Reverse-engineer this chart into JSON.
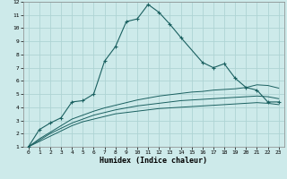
{
  "xlabel": "Humidex (Indice chaleur)",
  "background_color": "#cdeaea",
  "grid_color": "#aed4d4",
  "line_color": "#1a6060",
  "xlim": [
    -0.5,
    23.5
  ],
  "ylim": [
    1,
    12
  ],
  "xticks": [
    0,
    1,
    2,
    3,
    4,
    5,
    6,
    7,
    8,
    9,
    10,
    11,
    12,
    13,
    14,
    15,
    16,
    17,
    18,
    19,
    20,
    21,
    22,
    23
  ],
  "yticks": [
    1,
    2,
    3,
    4,
    5,
    6,
    7,
    8,
    9,
    10,
    11,
    12
  ],
  "series_main": {
    "x": [
      0,
      1,
      2,
      3,
      4,
      5,
      6,
      7,
      8,
      9,
      10,
      11,
      12,
      13,
      14,
      16,
      17,
      18,
      19,
      20,
      21,
      22,
      23
    ],
    "y": [
      1.0,
      2.3,
      2.8,
      3.2,
      4.4,
      4.5,
      5.0,
      7.5,
      8.6,
      10.5,
      10.7,
      11.8,
      11.2,
      10.3,
      9.3,
      7.4,
      7.0,
      7.3,
      6.2,
      5.5,
      5.3,
      4.4,
      4.4
    ]
  },
  "series_low": [
    {
      "x": [
        0,
        1,
        2,
        3,
        4,
        5,
        6,
        7,
        8,
        9,
        10,
        11,
        12,
        13,
        14,
        15,
        16,
        17,
        18,
        19,
        20,
        21,
        22,
        23
      ],
      "y": [
        1.0,
        1.4,
        1.8,
        2.2,
        2.6,
        2.9,
        3.1,
        3.3,
        3.5,
        3.6,
        3.7,
        3.8,
        3.9,
        3.95,
        4.0,
        4.05,
        4.1,
        4.15,
        4.2,
        4.25,
        4.3,
        4.35,
        4.3,
        4.2
      ]
    },
    {
      "x": [
        0,
        1,
        2,
        3,
        4,
        5,
        6,
        7,
        8,
        9,
        10,
        11,
        12,
        13,
        14,
        15,
        16,
        17,
        18,
        19,
        20,
        21,
        22,
        23
      ],
      "y": [
        1.0,
        1.5,
        2.0,
        2.4,
        2.8,
        3.1,
        3.4,
        3.6,
        3.8,
        3.95,
        4.1,
        4.2,
        4.3,
        4.4,
        4.5,
        4.55,
        4.6,
        4.65,
        4.7,
        4.75,
        4.8,
        4.85,
        4.8,
        4.65
      ]
    },
    {
      "x": [
        0,
        1,
        2,
        3,
        4,
        5,
        6,
        7,
        8,
        9,
        10,
        11,
        12,
        13,
        14,
        15,
        16,
        17,
        18,
        19,
        20,
        21,
        22,
        23
      ],
      "y": [
        1.0,
        1.6,
        2.1,
        2.6,
        3.1,
        3.4,
        3.7,
        3.95,
        4.15,
        4.35,
        4.55,
        4.7,
        4.85,
        4.95,
        5.05,
        5.15,
        5.2,
        5.3,
        5.35,
        5.4,
        5.5,
        5.7,
        5.65,
        5.45
      ]
    }
  ]
}
